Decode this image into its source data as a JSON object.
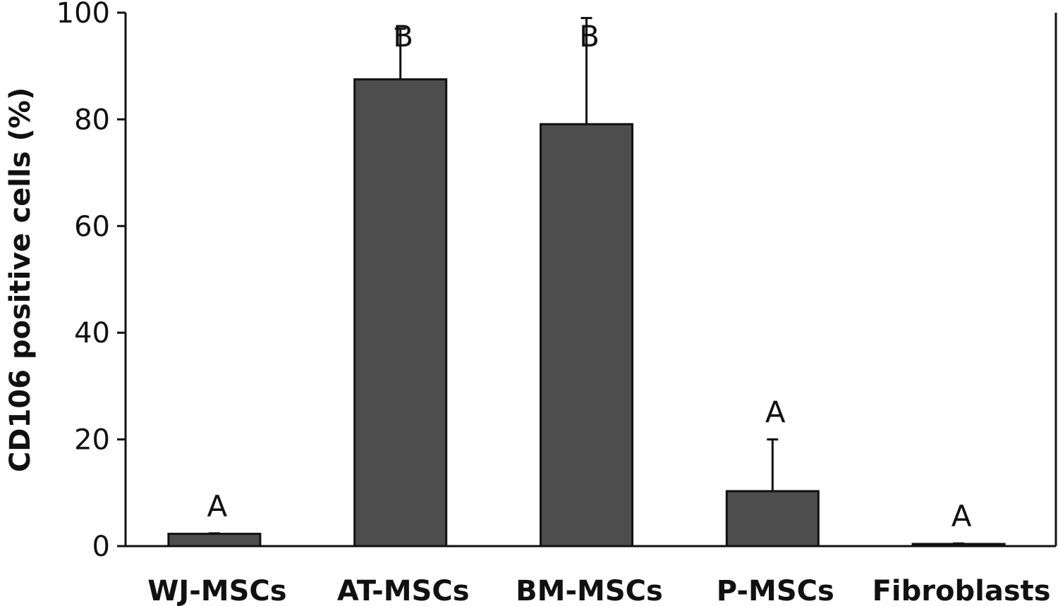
{
  "chart_data": {
    "type": "bar",
    "categories": [
      "WJ-MSCs",
      "AT-MSCs",
      "BM-MSCs",
      "P-MSCs",
      "Fibroblasts"
    ],
    "values": [
      2.3,
      87.5,
      79.1,
      10.3,
      0.4
    ],
    "error_upper": [
      2.4,
      97.0,
      99.0,
      20.0,
      0.5
    ],
    "significance": [
      "A",
      "B",
      "B",
      "A",
      "A"
    ],
    "ylabel": "CD106 positive cells (%)",
    "xlabel": "",
    "ylim": [
      0,
      100
    ],
    "yticks": [
      "0",
      "20",
      "40",
      "60",
      "80",
      "100"
    ],
    "bar_color": "#4d4d4d",
    "grid": false
  }
}
